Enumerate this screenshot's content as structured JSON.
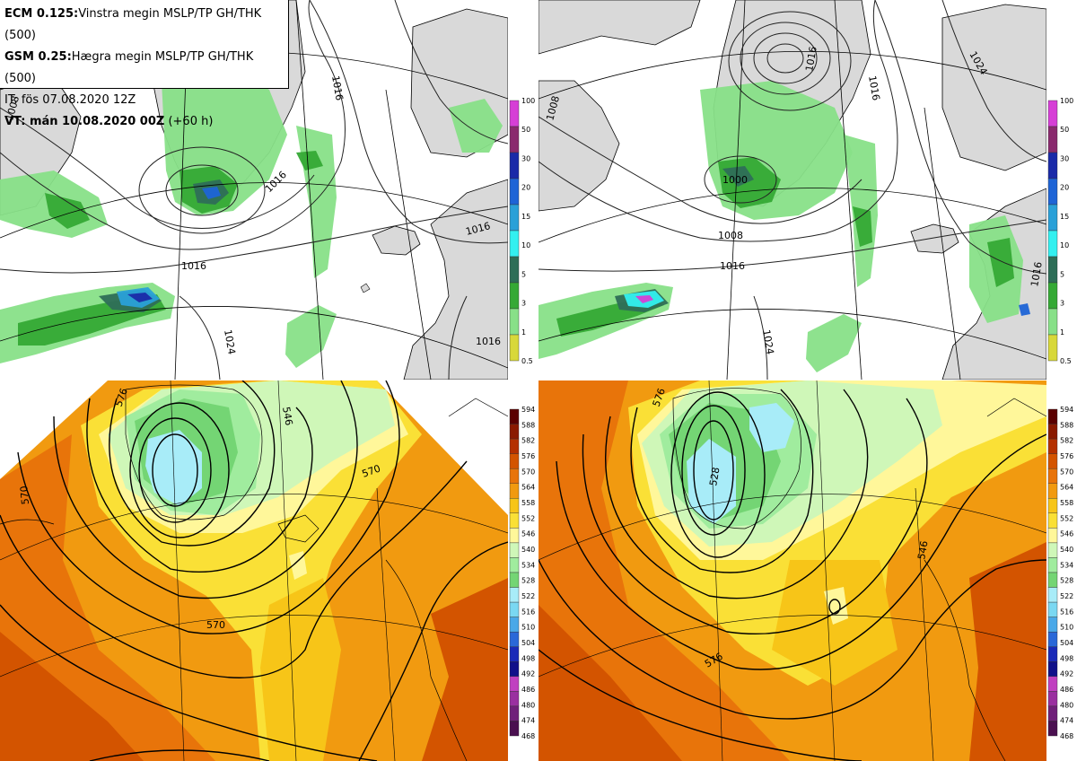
{
  "header": {
    "ecm_model": "ECM 0.125:",
    "ecm_desc": "Vinstra megin MSLP/TP GH/THK (500)",
    "gsm_model": "GSM 0.25:",
    "gsm_desc": "Hægra megin MSLP/TP GH/THK (500)",
    "init_time": "IT: fös 07.08.2020 12Z",
    "valid_label": "VT: mán 10.08.2020 00Z",
    "valid_lead": "(+60 h)"
  },
  "precip_scale": {
    "ticks": [
      "100",
      "50",
      "30",
      "20",
      "15",
      "10",
      "5",
      "3",
      "1",
      "0.5"
    ],
    "colors": [
      "#d63fd6",
      "#8a2a6e",
      "#1a2aa8",
      "#1e64d6",
      "#2aa0d8",
      "#33f0f0",
      "#2e6e57",
      "#35a935",
      "#88e088",
      "#d8d83a"
    ]
  },
  "thickness_scale": {
    "ticks": [
      "594",
      "588",
      "582",
      "576",
      "570",
      "564",
      "558",
      "552",
      "546",
      "540",
      "534",
      "528",
      "522",
      "516",
      "510",
      "504",
      "498",
      "492",
      "486",
      "480",
      "474",
      "468"
    ],
    "colors": [
      "#5a0000",
      "#8a1a00",
      "#b43000",
      "#d35400",
      "#e8740a",
      "#f19a10",
      "#f7c518",
      "#fae036",
      "#fff79a",
      "#cff7b8",
      "#a0ec9e",
      "#74d574",
      "#a8ecf8",
      "#7ad8f2",
      "#4aa8e8",
      "#2a68d8",
      "#1a2ab8",
      "#10108a",
      "#c040c0",
      "#9a30a0",
      "#70207a",
      "#4a1050"
    ]
  },
  "maps": {
    "ecm_mslp": {
      "isobars": [
        "1008",
        "1016",
        "1016",
        "1016",
        "1024",
        "1016",
        "1016"
      ]
    },
    "gsm_mslp": {
      "isobars": [
        "1008",
        "1016",
        "1000",
        "1008",
        "1016",
        "1024",
        "1016",
        "1024",
        "1016"
      ]
    },
    "ecm_thk": {
      "contours": [
        "546",
        "570",
        "570",
        "570",
        "576"
      ]
    },
    "gsm_thk": {
      "contours": [
        "528",
        "576",
        "546",
        "576"
      ]
    }
  }
}
